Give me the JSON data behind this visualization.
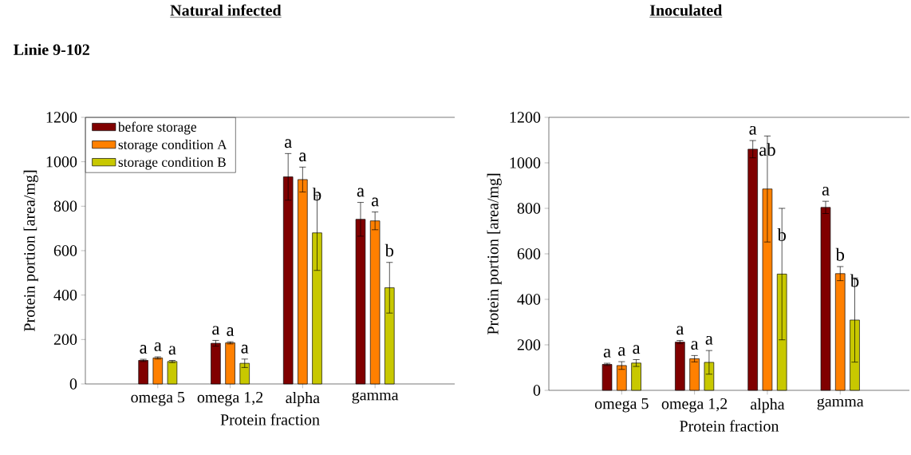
{
  "chart_data": [
    {
      "type": "bar",
      "title": "Natural infected",
      "annotations": [
        "Linie 9-102"
      ],
      "xlabel": "Protein fraction",
      "ylabel": "Protein portion [area/mg]",
      "categories": [
        "omega 5",
        "omega 1,2",
        "alpha",
        "gamma"
      ],
      "ylim": [
        0,
        1200
      ],
      "yticks": [
        0,
        200,
        400,
        600,
        800,
        1000,
        1200
      ],
      "legend": "top left",
      "series": [
        {
          "name": "before storage",
          "color": "#800000",
          "values": [
            106,
            183,
            932,
            741
          ],
          "errors": [
            5,
            13,
            105,
            76
          ],
          "value_labels": [
            "a",
            "a",
            "a",
            "a"
          ]
        },
        {
          "name": "storage condition A",
          "color": "#ff8000",
          "values": [
            117,
            185,
            920,
            734
          ],
          "errors": [
            5,
            5,
            56,
            40
          ],
          "value_labels": [
            "a",
            "a",
            "a",
            "a"
          ]
        },
        {
          "name": "storage condition B",
          "color": "#c8c800",
          "values": [
            101,
            93,
            680,
            433
          ],
          "errors": [
            5,
            19,
            169,
            114
          ],
          "value_labels": [
            "a",
            "a",
            "b",
            "b"
          ]
        }
      ]
    },
    {
      "type": "bar",
      "title": "Inoculated",
      "xlabel": "Protein fraction",
      "ylabel": "Protein portion [area/mg]",
      "categories": [
        "omega 5",
        "omega 1,2",
        "alpha",
        "gamma"
      ],
      "ylim": [
        0,
        1200
      ],
      "yticks": [
        0,
        200,
        400,
        600,
        800,
        1000,
        1200
      ],
      "series": [
        {
          "color": "#800000",
          "values": [
            114,
            212,
            1060,
            804
          ],
          "errors": [
            5,
            7,
            38,
            27
          ],
          "value_labels": [
            "a",
            "a",
            "a",
            "a"
          ]
        },
        {
          "color": "#ff8000",
          "values": [
            109,
            139,
            885,
            513
          ],
          "errors": [
            17,
            14,
            233,
            31
          ],
          "value_labels": [
            "a",
            "a",
            "ab",
            "b"
          ]
        },
        {
          "color": "#c8c800",
          "values": [
            120,
            123,
            511,
            309
          ],
          "errors": [
            15,
            52,
            289,
            185
          ],
          "value_labels": [
            "a",
            "a",
            "b",
            "b"
          ]
        }
      ]
    }
  ]
}
